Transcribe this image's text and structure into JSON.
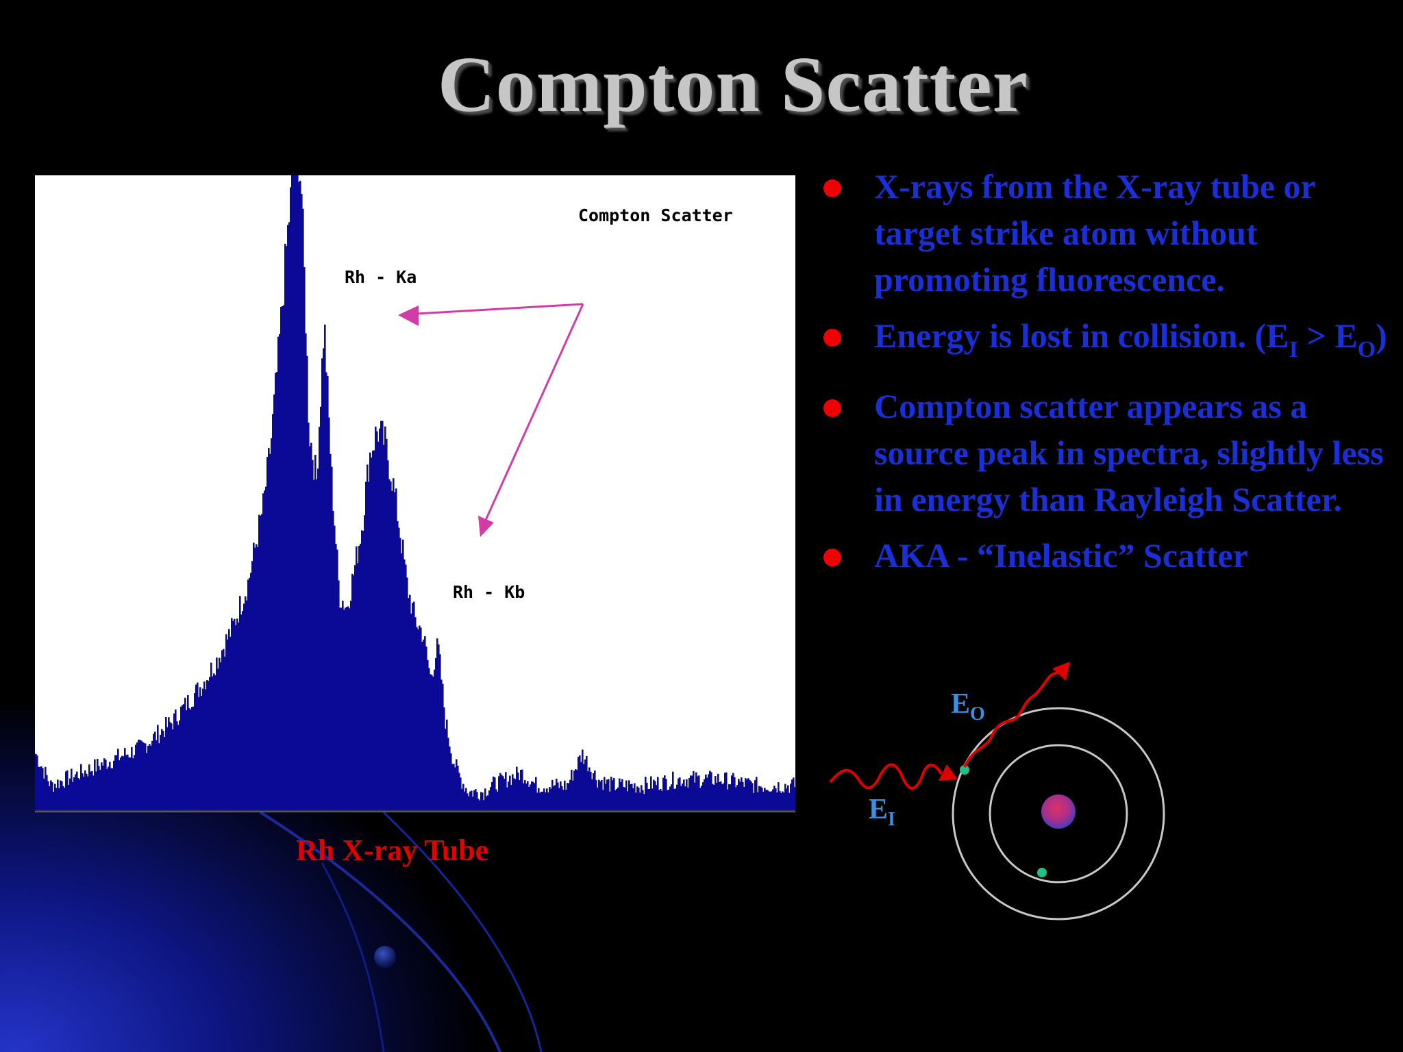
{
  "slide": {
    "title": "Compton Scatter",
    "caption": "Rh X-ray Tube",
    "colors": {
      "background": "#000000",
      "bullet_text": "#1a2fd6",
      "bullet_dot": "#f00000",
      "caption": "#e00000",
      "spectrum_fill": "#0a0a96",
      "arrow": "#d23ca6"
    }
  },
  "bullets": [
    {
      "text": "X-rays from the X-ray tube or target strike atom  without promoting fluorescence."
    },
    {
      "pre": "Energy is lost in collision. (E",
      "sub1": "I",
      "mid": " > E",
      "sub2": "O",
      "post": ")"
    },
    {
      "text": "Compton scatter appears as a source peak in spectra, slightly less in energy than Rayleigh Scatter."
    },
    {
      "text": "AKA - “Inelastic” Scatter"
    }
  ],
  "diagram": {
    "incoming_label": "E",
    "incoming_sub": "I",
    "outgoing_label": "E",
    "outgoing_sub": "O"
  },
  "chart_data": {
    "type": "area",
    "title": "",
    "xlabel": "",
    "ylabel": "",
    "grid": false,
    "annotations": [
      "Compton Scatter",
      "Rh - Ka",
      "Rh - Kb"
    ],
    "series": [
      {
        "x": [
          0,
          0.02,
          0.04,
          0.06,
          0.08,
          0.1,
          0.12,
          0.14,
          0.16,
          0.18,
          0.2,
          0.22,
          0.24,
          0.26,
          0.28,
          0.3,
          0.31,
          0.32,
          0.33,
          0.34,
          0.345,
          0.35,
          0.355,
          0.36,
          0.37,
          0.38,
          0.39,
          0.4,
          0.41,
          0.42,
          0.43,
          0.44,
          0.45,
          0.46,
          0.47,
          0.48,
          0.49,
          0.5,
          0.51,
          0.52,
          0.53,
          0.54,
          0.55,
          0.56,
          0.57,
          0.58,
          0.59,
          0.6,
          0.62,
          0.64,
          0.66,
          0.68,
          0.7,
          0.72,
          0.74,
          0.76,
          0.78,
          0.8,
          0.85,
          0.9,
          0.95,
          1.0
        ],
        "y": [
          0.09,
          0.04,
          0.05,
          0.06,
          0.07,
          0.08,
          0.09,
          0.1,
          0.12,
          0.14,
          0.17,
          0.2,
          0.24,
          0.29,
          0.36,
          0.48,
          0.58,
          0.72,
          0.88,
          1.02,
          1.05,
          0.98,
          0.8,
          0.6,
          0.52,
          0.77,
          0.52,
          0.34,
          0.32,
          0.38,
          0.45,
          0.56,
          0.6,
          0.58,
          0.52,
          0.44,
          0.35,
          0.3,
          0.28,
          0.21,
          0.26,
          0.14,
          0.08,
          0.05,
          0.03,
          0.03,
          0.03,
          0.04,
          0.05,
          0.06,
          0.04,
          0.04,
          0.04,
          0.09,
          0.05,
          0.04,
          0.04,
          0.04,
          0.05,
          0.05,
          0.04,
          0.04
        ]
      }
    ]
  }
}
